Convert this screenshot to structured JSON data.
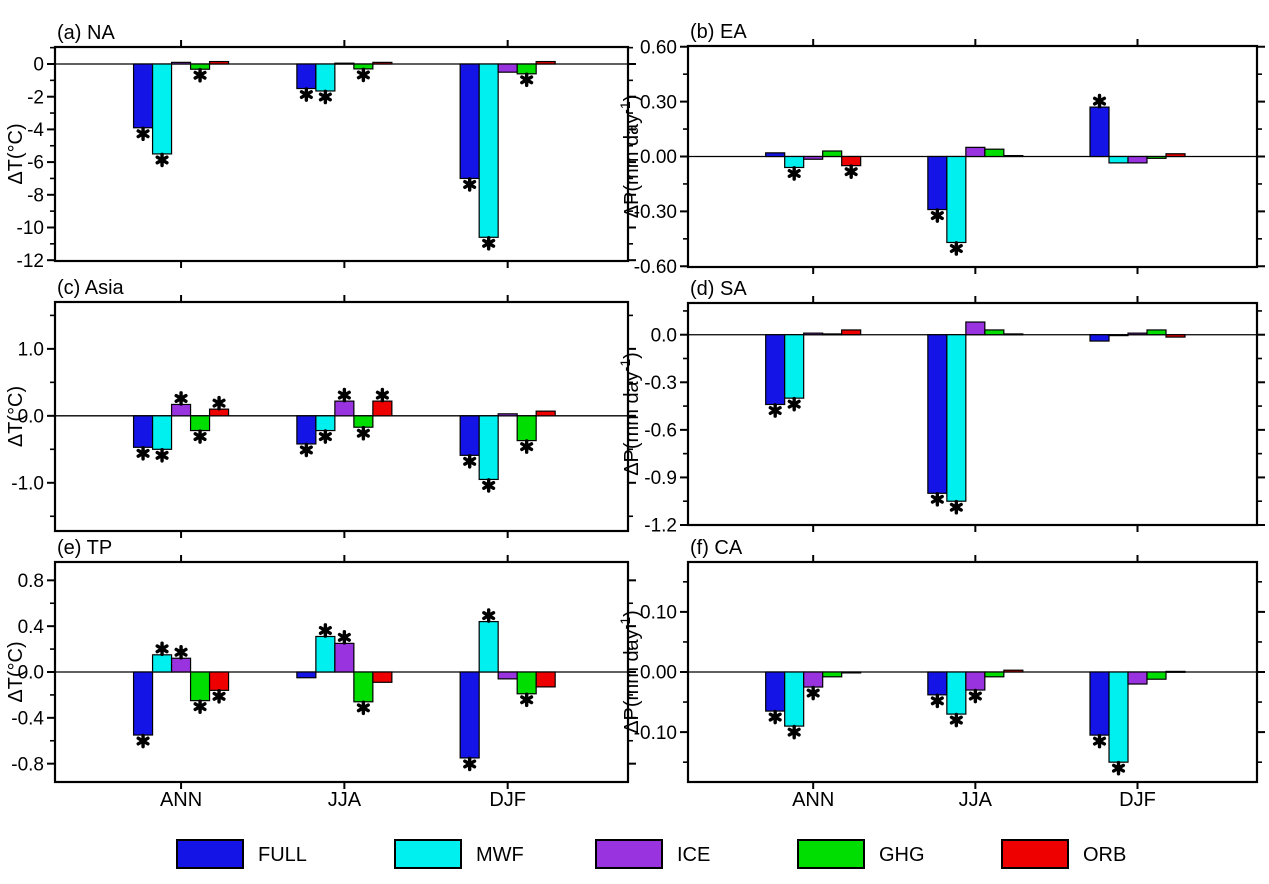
{
  "figure_background": "#ffffff",
  "legend": {
    "entries": [
      {
        "label": "FULL",
        "color": "#1414e6"
      },
      {
        "label": "MWF",
        "color": "#00efef"
      },
      {
        "label": "ICE",
        "color": "#9933e0"
      },
      {
        "label": "GHG",
        "color": "#00dd00"
      },
      {
        "label": "ORB",
        "color": "#ee0000"
      }
    ],
    "swatch_border_color": "#000000"
  },
  "chart_data": [
    {
      "id": "a",
      "type": "bar",
      "title": "(a) NA",
      "ylabel": "ΔT(°C)",
      "categories": [
        "ANN",
        "JJA",
        "DJF"
      ],
      "ylim": [
        -12.05,
        1.04
      ],
      "yticks": [
        0,
        -2,
        -4,
        -6,
        -8,
        -10,
        -12
      ],
      "ytick_labels": [
        "0",
        "-2",
        "-4",
        "-6",
        "-8",
        "-10",
        "-12"
      ],
      "minor_tick_step": 1,
      "show_x_labels": false,
      "grid": false,
      "series": [
        {
          "name": "FULL",
          "values": [
            -3.9,
            -1.5,
            -7.0
          ],
          "significant": [
            true,
            true,
            true
          ]
        },
        {
          "name": "MWF",
          "values": [
            -5.5,
            -1.65,
            -10.6
          ],
          "significant": [
            true,
            true,
            true
          ]
        },
        {
          "name": "ICE",
          "values": [
            0.1,
            0.05,
            -0.5
          ],
          "significant": [
            false,
            false,
            false
          ]
        },
        {
          "name": "GHG",
          "values": [
            -0.32,
            -0.3,
            -0.6
          ],
          "significant": [
            true,
            true,
            true
          ]
        },
        {
          "name": "ORB",
          "values": [
            0.15,
            0.1,
            0.15
          ],
          "significant": [
            false,
            false,
            false
          ]
        }
      ]
    },
    {
      "id": "b",
      "type": "bar",
      "title": "(b) EA",
      "ylabel": "ΔP(mm day⁻¹)",
      "categories": [
        "ANN",
        "JJA",
        "DJF"
      ],
      "ylim": [
        -0.604,
        0.604
      ],
      "yticks": [
        0.6,
        0.3,
        0.0,
        -0.3,
        -0.6
      ],
      "ytick_labels": [
        "0.60",
        "0.30",
        "0.00",
        "-0.30",
        "-0.60"
      ],
      "minor_tick_step": 0.15,
      "show_x_labels": false,
      "grid": false,
      "series": [
        {
          "name": "FULL",
          "values": [
            0.02,
            -0.29,
            0.27
          ],
          "significant": [
            false,
            true,
            true
          ]
        },
        {
          "name": "MWF",
          "values": [
            -0.06,
            -0.47,
            -0.035
          ],
          "significant": [
            true,
            true,
            false
          ]
        },
        {
          "name": "ICE",
          "values": [
            -0.015,
            0.05,
            -0.035
          ],
          "significant": [
            false,
            false,
            false
          ]
        },
        {
          "name": "GHG",
          "values": [
            0.03,
            0.04,
            -0.01
          ],
          "significant": [
            false,
            false,
            false
          ]
        },
        {
          "name": "ORB",
          "values": [
            -0.05,
            0.005,
            0.015
          ],
          "significant": [
            true,
            false,
            false
          ]
        }
      ]
    },
    {
      "id": "c",
      "type": "bar",
      "title": "(c) Asia",
      "ylabel": "ΔT(°C)",
      "categories": [
        "ANN",
        "JJA",
        "DJF"
      ],
      "ylim": [
        -1.72,
        1.7
      ],
      "yticks": [
        1.0,
        0.0,
        -1.0
      ],
      "ytick_labels": [
        "1.0",
        "0.0",
        "-1.0"
      ],
      "minor_tick_step": 0.5,
      "show_x_labels": false,
      "grid": false,
      "series": [
        {
          "name": "FULL",
          "values": [
            -0.47,
            -0.42,
            -0.59
          ],
          "significant": [
            true,
            true,
            true
          ]
        },
        {
          "name": "MWF",
          "values": [
            -0.5,
            -0.22,
            -0.95
          ],
          "significant": [
            true,
            true,
            true
          ]
        },
        {
          "name": "ICE",
          "values": [
            0.17,
            0.22,
            0.03
          ],
          "significant": [
            true,
            true,
            false
          ]
        },
        {
          "name": "GHG",
          "values": [
            -0.22,
            -0.17,
            -0.37
          ],
          "significant": [
            true,
            true,
            true
          ]
        },
        {
          "name": "ORB",
          "values": [
            0.1,
            0.22,
            0.07
          ],
          "significant": [
            true,
            true,
            false
          ]
        }
      ]
    },
    {
      "id": "d",
      "type": "bar",
      "title": "(d) SA",
      "ylabel": "ΔP(mm day⁻¹)",
      "categories": [
        "ANN",
        "JJA",
        "DJF"
      ],
      "ylim": [
        -1.2,
        0.2
      ],
      "yticks": [
        0.0,
        -0.3,
        -0.6,
        -0.9,
        -1.2
      ],
      "ytick_labels": [
        "0.0",
        "-0.3",
        "-0.6",
        "-0.9",
        "-1.2"
      ],
      "minor_tick_step": 0.15,
      "show_x_labels": false,
      "grid": false,
      "series": [
        {
          "name": "FULL",
          "values": [
            -0.44,
            -1.0,
            -0.04
          ],
          "significant": [
            true,
            true,
            false
          ]
        },
        {
          "name": "MWF",
          "values": [
            -0.4,
            -1.05,
            0.0
          ],
          "significant": [
            true,
            true,
            false
          ]
        },
        {
          "name": "ICE",
          "values": [
            0.01,
            0.08,
            0.01
          ],
          "significant": [
            false,
            false,
            false
          ]
        },
        {
          "name": "GHG",
          "values": [
            0.005,
            0.03,
            0.03
          ],
          "significant": [
            false,
            false,
            false
          ]
        },
        {
          "name": "ORB",
          "values": [
            0.03,
            0.005,
            -0.015
          ],
          "significant": [
            false,
            false,
            false
          ]
        }
      ]
    },
    {
      "id": "e",
      "type": "bar",
      "title": "(e) TP",
      "ylabel": "ΔT(°C)",
      "categories": [
        "ANN",
        "JJA",
        "DJF"
      ],
      "ylim": [
        -0.96,
        0.96
      ],
      "yticks": [
        0.8,
        0.4,
        0.0,
        -0.4,
        -0.8
      ],
      "ytick_labels": [
        "0.8",
        "0.4",
        "0.0",
        "-0.4",
        "-0.8"
      ],
      "minor_tick_step": 0.2,
      "show_x_labels": true,
      "grid": false,
      "series": [
        {
          "name": "FULL",
          "values": [
            -0.55,
            -0.05,
            -0.75
          ],
          "significant": [
            true,
            false,
            true
          ]
        },
        {
          "name": "MWF",
          "values": [
            0.15,
            0.31,
            0.44
          ],
          "significant": [
            true,
            true,
            true
          ]
        },
        {
          "name": "ICE",
          "values": [
            0.12,
            0.25,
            -0.06
          ],
          "significant": [
            true,
            true,
            false
          ]
        },
        {
          "name": "GHG",
          "values": [
            -0.25,
            -0.26,
            -0.19
          ],
          "significant": [
            true,
            true,
            true
          ]
        },
        {
          "name": "ORB",
          "values": [
            -0.16,
            -0.09,
            -0.13
          ],
          "significant": [
            true,
            false,
            false
          ]
        }
      ]
    },
    {
      "id": "f",
      "type": "bar",
      "title": "(f) CA",
      "ylabel": "ΔP(mm day⁻¹)",
      "categories": [
        "ANN",
        "JJA",
        "DJF"
      ],
      "ylim": [
        -0.183,
        0.183
      ],
      "yticks": [
        0.1,
        0.0,
        -0.1
      ],
      "ytick_labels": [
        "0.10",
        "0.00",
        "-0.10"
      ],
      "minor_tick_step": 0.05,
      "show_x_labels": true,
      "grid": false,
      "series": [
        {
          "name": "FULL",
          "values": [
            -0.065,
            -0.038,
            -0.105
          ],
          "significant": [
            true,
            true,
            true
          ]
        },
        {
          "name": "MWF",
          "values": [
            -0.09,
            -0.07,
            -0.15
          ],
          "significant": [
            true,
            true,
            true
          ]
        },
        {
          "name": "ICE",
          "values": [
            -0.025,
            -0.03,
            -0.02
          ],
          "significant": [
            true,
            true,
            false
          ]
        },
        {
          "name": "GHG",
          "values": [
            -0.008,
            -0.008,
            -0.012
          ],
          "significant": [
            false,
            false,
            false
          ]
        },
        {
          "name": "ORB",
          "values": [
            -0.001,
            0.003,
            0.001
          ],
          "significant": [
            false,
            false,
            false
          ]
        }
      ]
    }
  ]
}
